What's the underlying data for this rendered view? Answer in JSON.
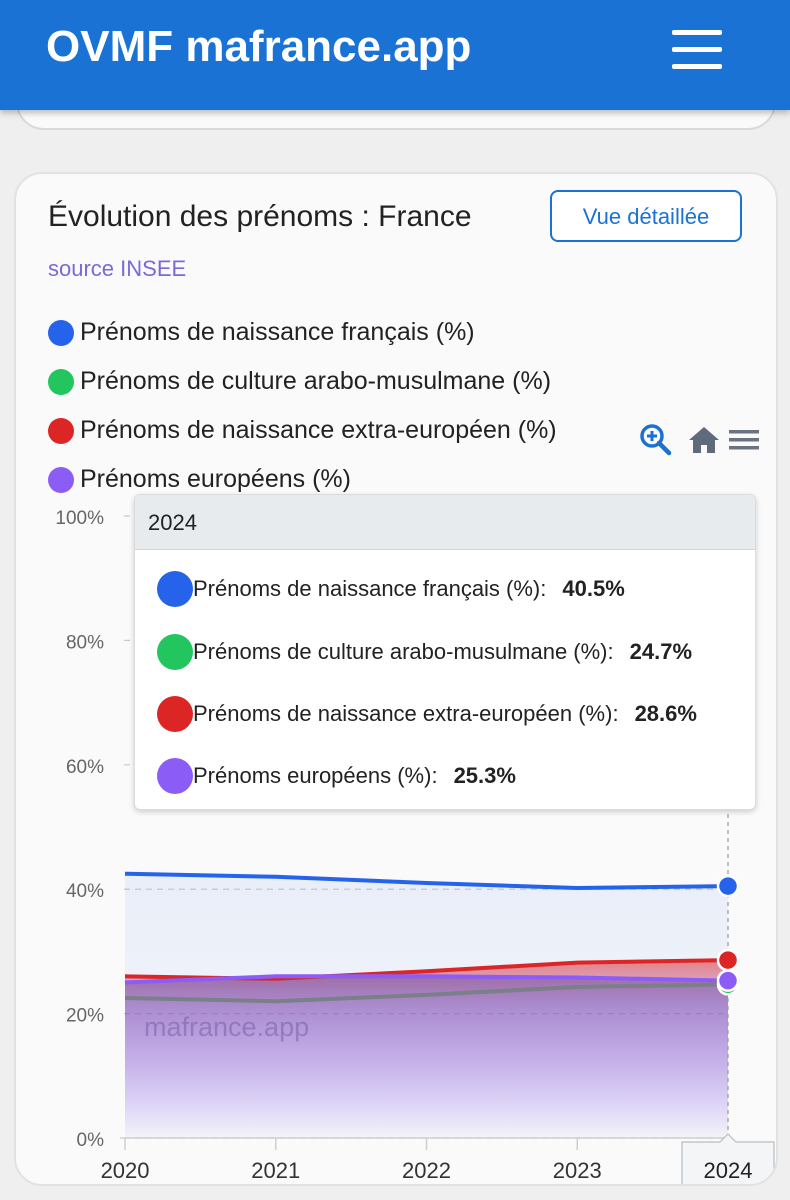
{
  "app": {
    "brand": "OVMF mafrance.app"
  },
  "card": {
    "title": "Évolution des prénoms : France",
    "detail_button": "Vue détaillée",
    "source": "source INSEE",
    "watermark": "mafrance.app"
  },
  "icons": {
    "zoom": "zoom-in-icon",
    "home": "home-icon",
    "menu": "menu-icon"
  },
  "tooltip": {
    "year": "2024",
    "rows": [
      {
        "label": "Prénoms de naissance français (%):",
        "value": "40.5%",
        "color": "#2563eb"
      },
      {
        "label": "Prénoms de culture arabo-musulmane (%):",
        "value": "24.7%",
        "color": "#22c55e"
      },
      {
        "label": "Prénoms de naissance extra-européen (%):",
        "value": "28.6%",
        "color": "#dc2626"
      },
      {
        "label": "Prénoms européens (%):",
        "value": "25.3%",
        "color": "#8b5cf6"
      }
    ]
  },
  "chart_data": {
    "type": "area",
    "title": "Évolution des prénoms : France",
    "x": [
      2020,
      2021,
      2022,
      2023,
      2024
    ],
    "x_tick_labels": [
      "2020",
      "2021",
      "2022",
      "2023",
      "2024"
    ],
    "ylim": [
      0,
      100
    ],
    "y_ticks": [
      "0%",
      "20%",
      "40%",
      "60%",
      "80%",
      "100%"
    ],
    "grid": true,
    "legend_position": "top-left",
    "highlight_x_label": "2024",
    "series": [
      {
        "name": "Prénoms de naissance français (%)",
        "color": "#2563eb",
        "values": [
          42.5,
          42,
          41,
          40.2,
          40.5
        ]
      },
      {
        "name": "Prénoms de culture arabo-musulmane (%)",
        "color": "#22c55e",
        "values": [
          22.5,
          22,
          23,
          24.3,
          24.7
        ]
      },
      {
        "name": "Prénoms de naissance extra-européen (%)",
        "color": "#dc2626",
        "values": [
          26,
          25.6,
          26.8,
          28.2,
          28.6
        ]
      },
      {
        "name": "Prénoms européens (%)",
        "color": "#8b5cf6",
        "values": [
          25,
          26,
          26,
          25.8,
          25.3
        ]
      }
    ]
  }
}
